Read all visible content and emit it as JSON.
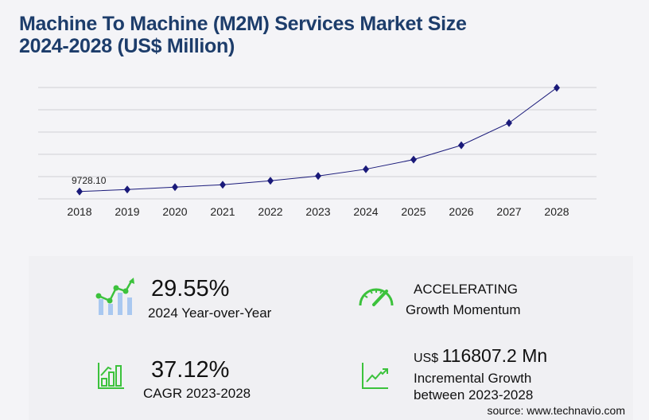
{
  "title_line1": "Machine To Machine (M2M) Services Market Size",
  "title_line2": "2024-2028 (US$ Million)",
  "chart_data": {
    "type": "line",
    "categories": [
      "2018",
      "2019",
      "2020",
      "2021",
      "2022",
      "2023",
      "2024",
      "2025",
      "2026",
      "2027",
      "2028"
    ],
    "values": [
      9728.1,
      12400,
      15600,
      18700,
      24000,
      30340,
      39306,
      52000,
      71000,
      100500,
      147147
    ],
    "data_labels": {
      "2018": "9728.10"
    },
    "ylim": [
      0,
      147500
    ],
    "grid": true,
    "line_color": "#1a1a7a",
    "xlabel": "",
    "ylabel": ""
  },
  "stats": {
    "yoy_value": "29.55%",
    "yoy_label": "2024 Year-over-Year",
    "momentum_value": "ACCELERATING",
    "momentum_label": "Growth Momentum",
    "cagr_value": "37.12%",
    "cagr_label": "CAGR 2023-2028",
    "increment_prefix": "US$",
    "increment_value": "116807.2 Mn",
    "increment_label1": "Incremental Growth",
    "increment_label2": "between 2023-2028"
  },
  "source": "source: www.technavio.com",
  "colors": {
    "accent_green": "#3cc23c",
    "title": "#1d3d6b",
    "bar_blue": "#a9c8f0"
  }
}
